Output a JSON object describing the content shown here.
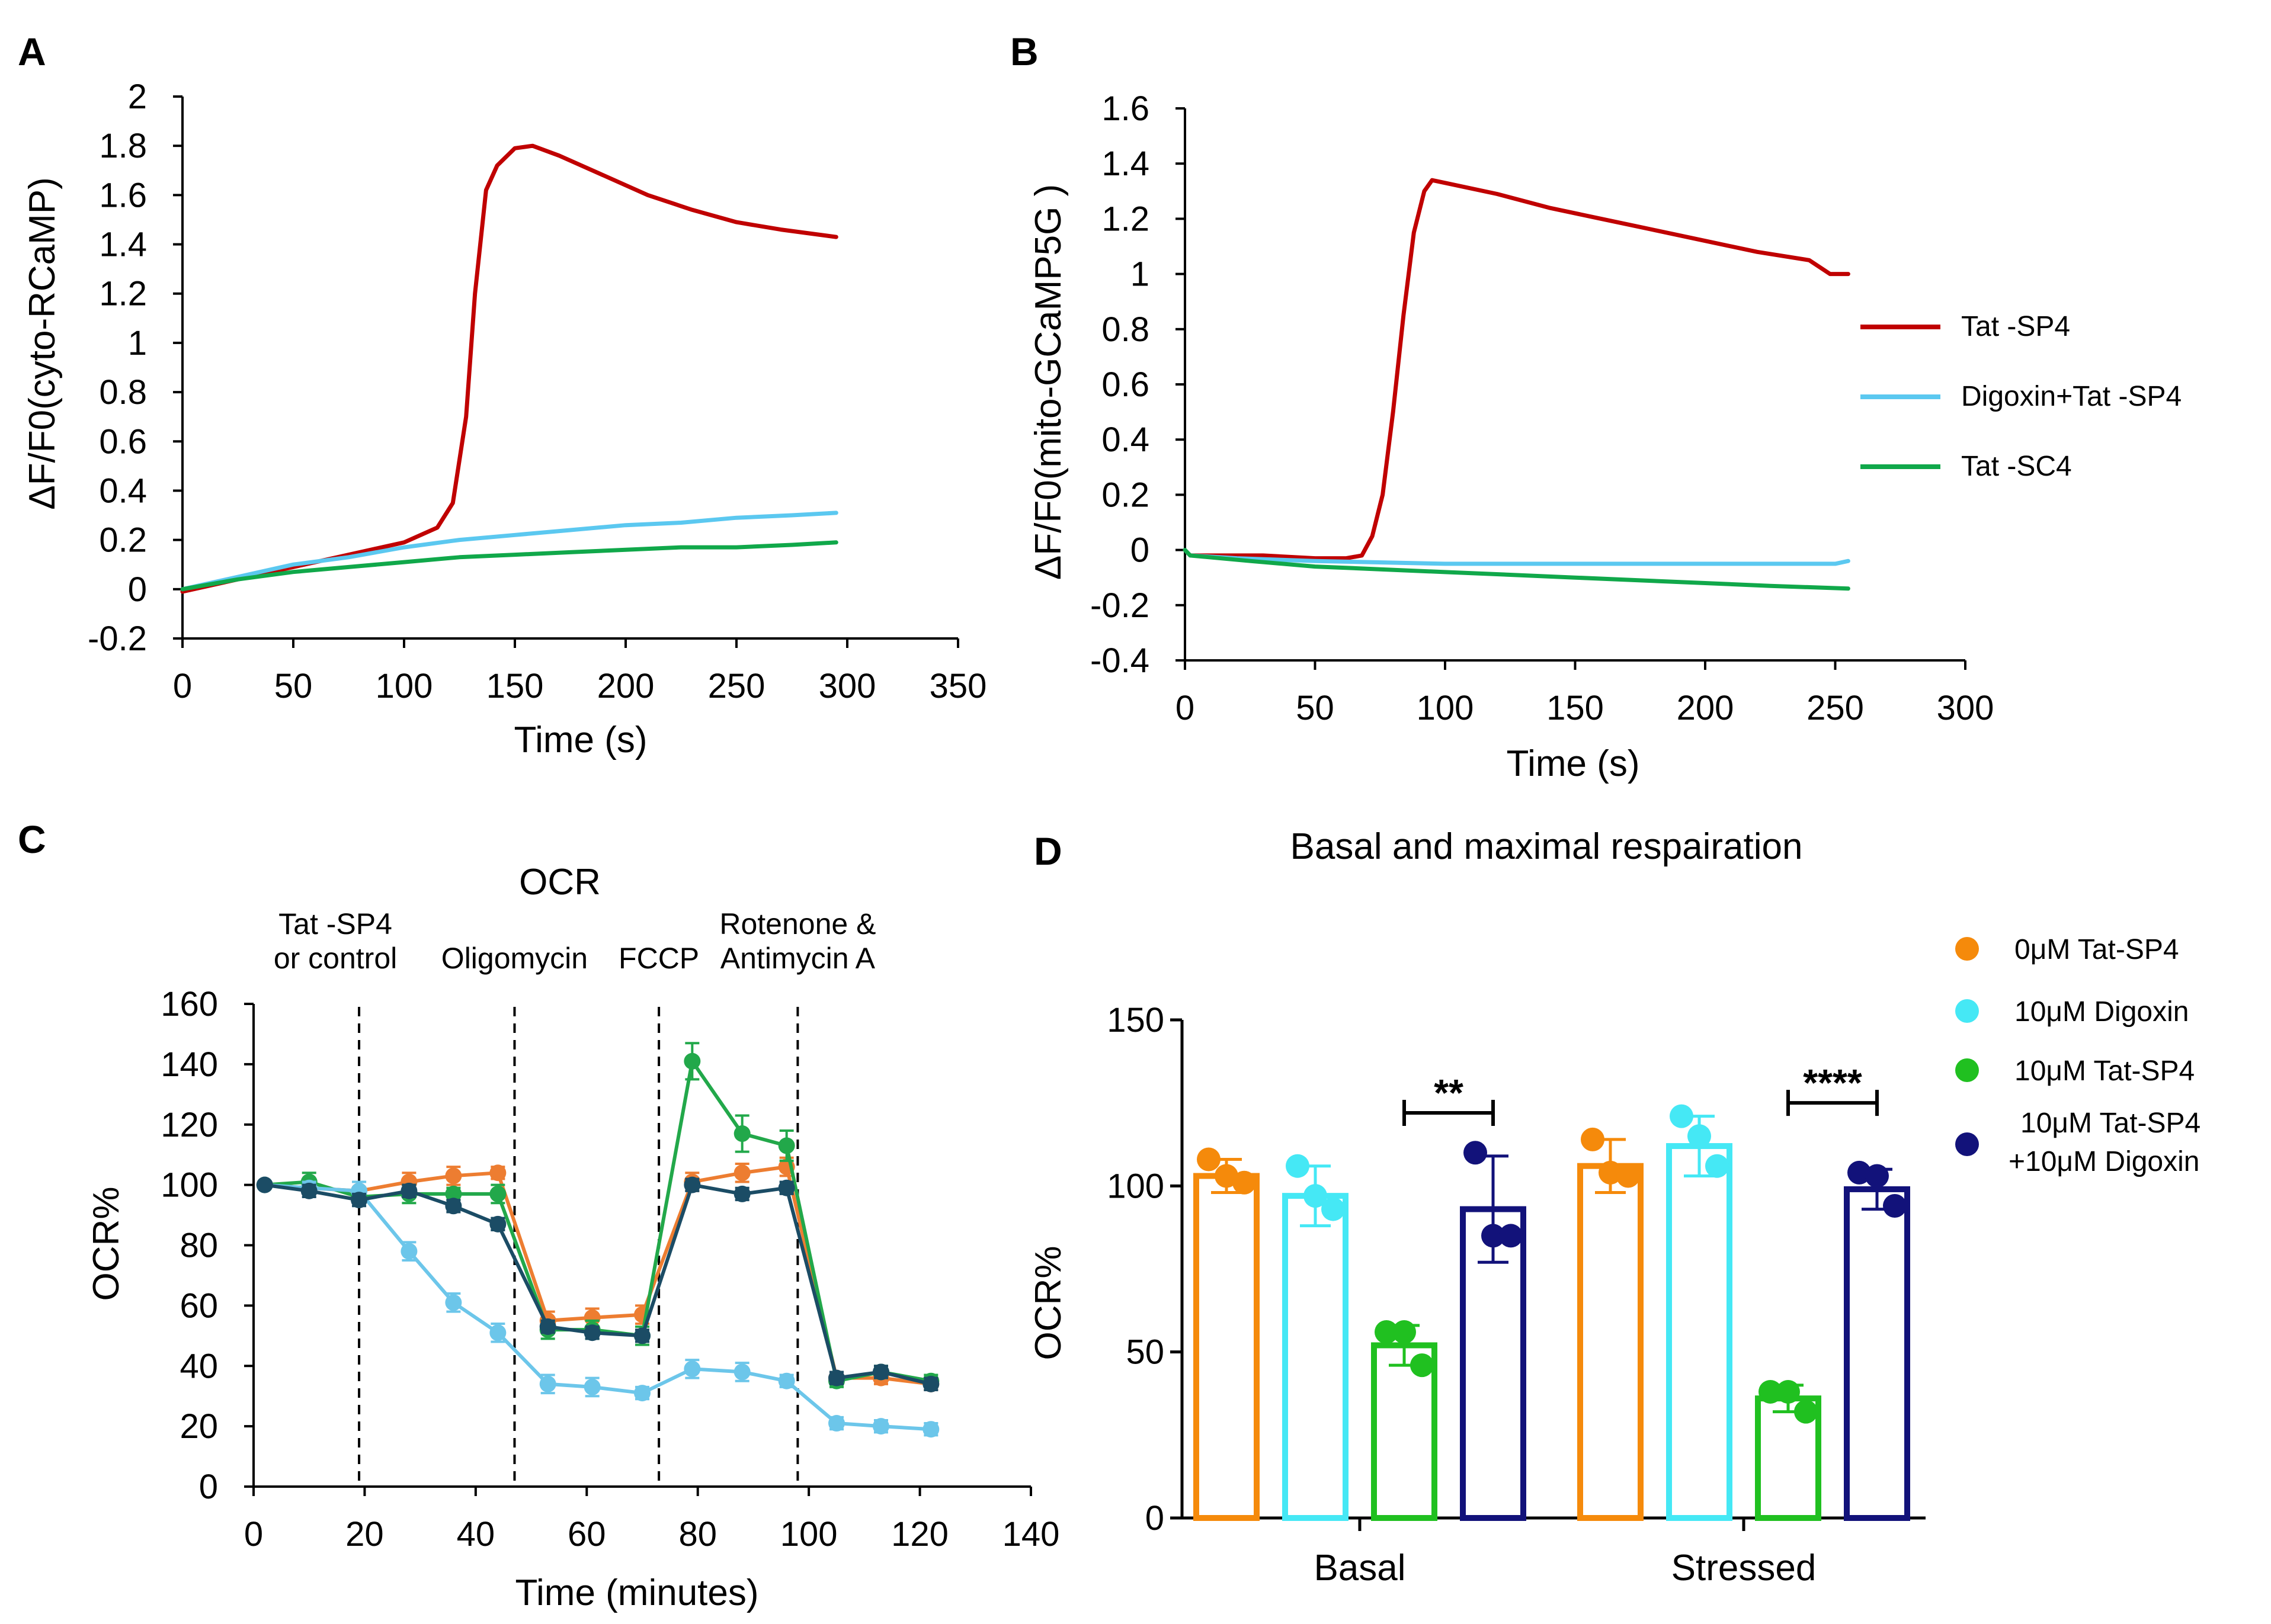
{
  "chart_data": [
    {
      "panel": "A",
      "type": "line",
      "title": "",
      "xlabel": "Time (s)",
      "ylabel": "ΔF/F0(cyto-RCaMP)",
      "xlim": [
        0,
        350
      ],
      "ylim": [
        -0.2,
        2
      ],
      "xticks": [
        0,
        50,
        100,
        150,
        200,
        250,
        300,
        350
      ],
      "xtick_labels": [
        "0",
        "50",
        "100",
        "150",
        "200",
        "250",
        "300",
        "350"
      ],
      "yticks": [
        -0.2,
        0,
        0.2,
        0.4,
        0.6,
        0.8,
        1,
        1.2,
        1.4,
        1.6,
        1.8,
        2
      ],
      "ytick_labels": [
        "-0.2",
        "0",
        "0.2",
        "0.4",
        "0.6",
        "0.8",
        "1",
        "1.2",
        "1.4",
        "1.6",
        "1.8",
        "2"
      ],
      "series": [
        {
          "name": "Tat-SP4",
          "color": "#c00000",
          "x": [
            0,
            20,
            40,
            60,
            80,
            100,
            115,
            122,
            128,
            132,
            137,
            142,
            150,
            158,
            170,
            190,
            210,
            230,
            250,
            270,
            295
          ],
          "y": [
            -0.01,
            0.03,
            0.07,
            0.11,
            0.15,
            0.19,
            0.25,
            0.35,
            0.7,
            1.2,
            1.62,
            1.72,
            1.79,
            1.8,
            1.76,
            1.68,
            1.6,
            1.54,
            1.49,
            1.46,
            1.43
          ]
        },
        {
          "name": "Digoxin+Tat-SP4",
          "color": "#5bc8f0",
          "x": [
            0,
            25,
            50,
            75,
            100,
            125,
            150,
            175,
            200,
            225,
            250,
            275,
            295
          ],
          "y": [
            0.0,
            0.05,
            0.1,
            0.13,
            0.17,
            0.2,
            0.22,
            0.24,
            0.26,
            0.27,
            0.29,
            0.3,
            0.31
          ]
        },
        {
          "name": "Tat-SC4",
          "color": "#10a84a",
          "x": [
            0,
            25,
            50,
            75,
            100,
            125,
            150,
            175,
            200,
            225,
            250,
            275,
            295
          ],
          "y": [
            0.0,
            0.04,
            0.07,
            0.09,
            0.11,
            0.13,
            0.14,
            0.15,
            0.16,
            0.17,
            0.17,
            0.18,
            0.19
          ]
        }
      ]
    },
    {
      "panel": "B",
      "type": "line",
      "title": "",
      "xlabel": "Time (s)",
      "ylabel": "ΔF/F0(mito-GCaMP5G )",
      "xlim": [
        0,
        300
      ],
      "ylim": [
        -0.4,
        1.6
      ],
      "xticks": [
        0,
        50,
        100,
        150,
        200,
        250,
        300
      ],
      "xtick_labels": [
        "0",
        "50",
        "100",
        "150",
        "200",
        "250",
        "300"
      ],
      "yticks": [
        -0.4,
        -0.2,
        0,
        0.2,
        0.4,
        0.6,
        0.8,
        1,
        1.2,
        1.4,
        1.6
      ],
      "ytick_labels": [
        "-0.4",
        "-0.2",
        "0",
        "0.2",
        "0.4",
        "0.6",
        "0.8",
        "1",
        "1.2",
        "1.4",
        "1.6"
      ],
      "legend": {
        "position": "right",
        "entries": [
          "Tat -SP4",
          "Digoxin+Tat -SP4",
          "Tat -SC4"
        ]
      },
      "series": [
        {
          "name": "Tat -SP4",
          "color": "#c00000",
          "x": [
            0,
            2,
            10,
            30,
            50,
            62,
            68,
            72,
            76,
            80,
            84,
            88,
            92,
            95,
            100,
            120,
            140,
            160,
            180,
            200,
            220,
            240,
            248,
            255
          ],
          "y": [
            0.0,
            -0.02,
            -0.02,
            -0.02,
            -0.03,
            -0.03,
            -0.02,
            0.05,
            0.2,
            0.5,
            0.85,
            1.15,
            1.3,
            1.34,
            1.33,
            1.29,
            1.24,
            1.2,
            1.16,
            1.12,
            1.08,
            1.05,
            1.0,
            1.0
          ]
        },
        {
          "name": "Digoxin+Tat -SP4",
          "color": "#5bc8f0",
          "x": [
            0,
            2,
            20,
            50,
            100,
            150,
            200,
            250,
            255
          ],
          "y": [
            0.0,
            -0.02,
            -0.03,
            -0.04,
            -0.05,
            -0.05,
            -0.05,
            -0.05,
            -0.04
          ]
        },
        {
          "name": "Tat -SC4",
          "color": "#10a84a",
          "x": [
            0,
            2,
            25,
            50,
            75,
            100,
            125,
            150,
            175,
            200,
            225,
            255
          ],
          "y": [
            0.0,
            -0.02,
            -0.04,
            -0.06,
            -0.07,
            -0.08,
            -0.09,
            -0.1,
            -0.11,
            -0.12,
            -0.13,
            -0.14
          ]
        }
      ]
    },
    {
      "panel": "C",
      "type": "line",
      "title": "OCR",
      "xlabel": "Time (minutes)",
      "ylabel": "OCR%",
      "xlim": [
        0,
        140
      ],
      "ylim": [
        0,
        160
      ],
      "xticks": [
        0,
        20,
        40,
        60,
        80,
        100,
        120,
        140
      ],
      "xtick_labels": [
        "0",
        "20",
        "40",
        "60",
        "80",
        "100",
        "120",
        "140"
      ],
      "yticks": [
        0,
        20,
        40,
        60,
        80,
        100,
        120,
        140,
        160
      ],
      "ytick_labels": [
        "0",
        "20",
        "40",
        "60",
        "80",
        "100",
        "120",
        "140",
        "160"
      ],
      "injections": [
        {
          "x": 19,
          "label_lines": [
            "Tat -SP4",
            "or control"
          ]
        },
        {
          "x": 47,
          "label_lines": [
            "Oligomycin"
          ]
        },
        {
          "x": 73,
          "label_lines": [
            "FCCP"
          ]
        },
        {
          "x": 98,
          "label_lines": [
            "Rotenone &",
            "Antimycin A"
          ]
        }
      ],
      "x": [
        2,
        10,
        19,
        28,
        36,
        44,
        53,
        61,
        70,
        79,
        88,
        96,
        105,
        113,
        122
      ],
      "series": [
        {
          "name": "orange",
          "color": "#ed7d31",
          "values": [
            100,
            99,
            98,
            101,
            103,
            104,
            55,
            56,
            57,
            101,
            104,
            106,
            36,
            36,
            34
          ],
          "errors": [
            0,
            2,
            3,
            3,
            3,
            2,
            3,
            3,
            3,
            3,
            3,
            3,
            2,
            2,
            2
          ]
        },
        {
          "name": "green",
          "color": "#22a84a",
          "values": [
            100,
            101,
            96,
            97,
            97,
            97,
            52,
            52,
            50,
            141,
            117,
            113,
            35,
            38,
            35
          ],
          "errors": [
            0,
            3,
            2,
            3,
            2,
            3,
            3,
            3,
            3,
            6,
            6,
            5,
            2,
            2,
            2
          ]
        },
        {
          "name": "lightblue",
          "color": "#6cc6ea",
          "values": [
            100,
            99,
            98,
            78,
            61,
            51,
            34,
            33,
            31,
            39,
            38,
            35,
            21,
            20,
            19
          ],
          "errors": [
            0,
            2,
            3,
            3,
            3,
            3,
            3,
            3,
            2,
            3,
            3,
            2,
            2,
            2,
            2
          ]
        },
        {
          "name": "darkteal",
          "color": "#1b4c65",
          "values": [
            100,
            98,
            95,
            98,
            93,
            87,
            53,
            51,
            50,
            100,
            97,
            99,
            36,
            38,
            34
          ],
          "errors": [
            0,
            2,
            2,
            2,
            2,
            2,
            2,
            2,
            2,
            2,
            2,
            2,
            2,
            2,
            2
          ]
        }
      ]
    },
    {
      "panel": "D",
      "type": "bar",
      "title": "Basal and maximal respairation",
      "xlabel": "",
      "ylabel": "OCR%",
      "ylim": [
        0,
        150
      ],
      "yticks": [
        0,
        50,
        100,
        150
      ],
      "ytick_labels": [
        "0",
        "50",
        "100",
        "150"
      ],
      "categories": [
        "Basal",
        "Stressed"
      ],
      "legend": {
        "position": "right",
        "entries": [
          "0μM Tat-SP4",
          "10μM Digoxin",
          "10μM Tat-SP4",
          "10μM Tat-SP4",
          "+10μM Digoxin"
        ]
      },
      "series": [
        {
          "name": "0μM Tat-SP4",
          "color": "#f58a0b",
          "values": [
            103,
            106
          ],
          "errors": [
            5,
            8
          ],
          "points": [
            [
              108,
              103,
              101
            ],
            [
              114,
              104,
              103
            ]
          ]
        },
        {
          "name": "10μM Digoxin",
          "color": "#45e8f5",
          "values": [
            97,
            112
          ],
          "errors": [
            9,
            9
          ],
          "points": [
            [
              106,
              97,
              93
            ],
            [
              121,
              115,
              106
            ]
          ]
        },
        {
          "name": "10μM Tat-SP4",
          "color": "#20c020",
          "values": [
            52,
            36
          ],
          "errors": [
            6,
            4
          ],
          "points": [
            [
              56,
              56,
              46
            ],
            [
              38,
              38,
              32
            ]
          ]
        },
        {
          "name": "10μM Tat-SP4 +10μM Digoxin",
          "color": "#12127a",
          "values": [
            93,
            99
          ],
          "errors": [
            16,
            6
          ],
          "points": [
            [
              110,
              85,
              85
            ],
            [
              104,
              103,
              94
            ]
          ]
        }
      ],
      "significance": [
        {
          "category": "Basal",
          "label": "**"
        },
        {
          "category": "Stressed",
          "label": "****"
        }
      ]
    }
  ]
}
